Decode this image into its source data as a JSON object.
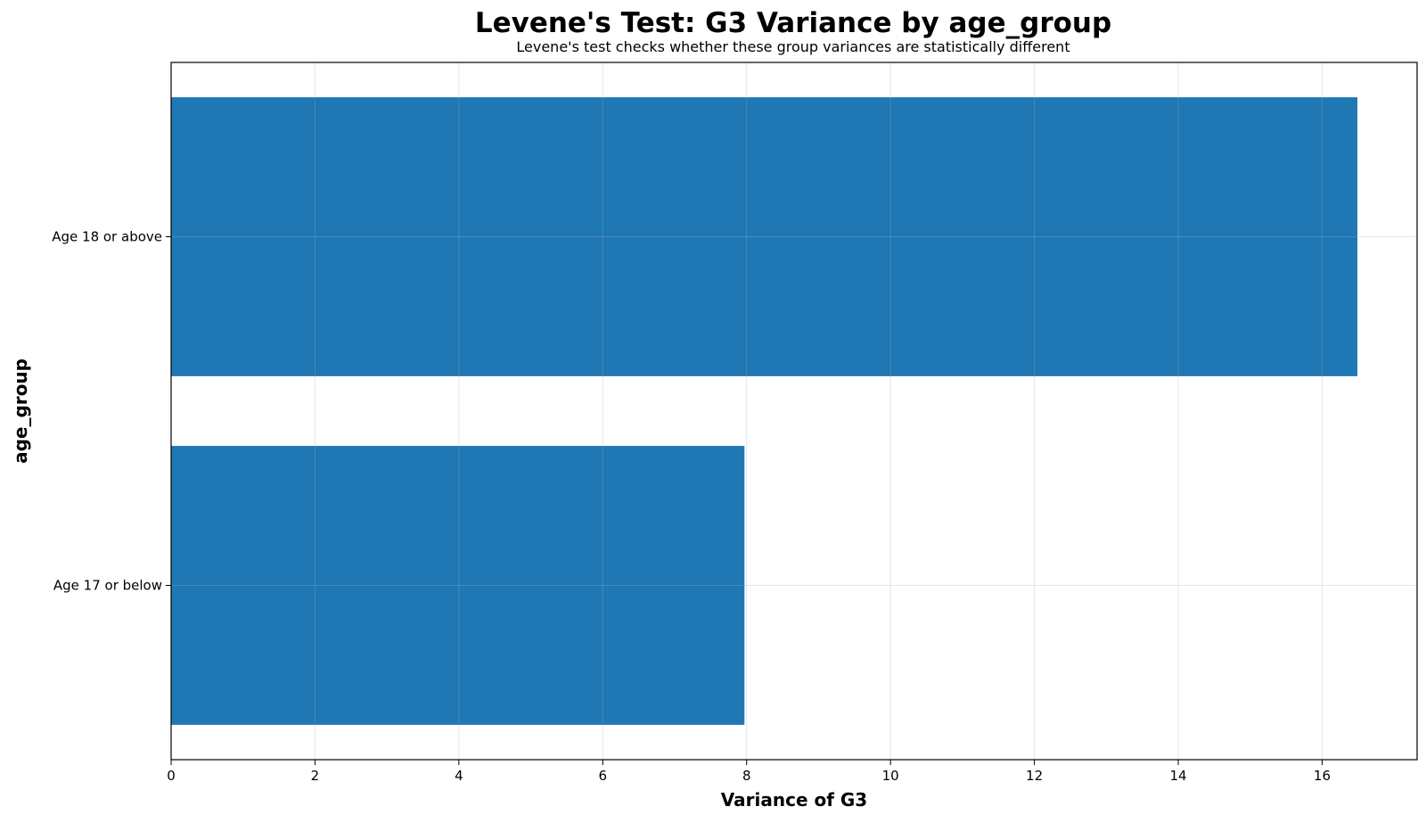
{
  "chart_data": {
    "type": "bar",
    "orientation": "horizontal",
    "title": "Levene's Test: G3 Variance by age_group",
    "subtitle": "Levene's test checks whether these group variances are statistically different",
    "xlabel": "Variance of G3",
    "ylabel": "age_group",
    "categories": [
      "Age 17 or below",
      "Age 18 or above"
    ],
    "values": [
      7.97,
      16.49
    ],
    "xlim": [
      0,
      17.32
    ],
    "xticks": [
      0,
      2,
      4,
      6,
      8,
      10,
      12,
      14,
      16
    ],
    "grid": true,
    "bar_color": "#1f77b4"
  }
}
